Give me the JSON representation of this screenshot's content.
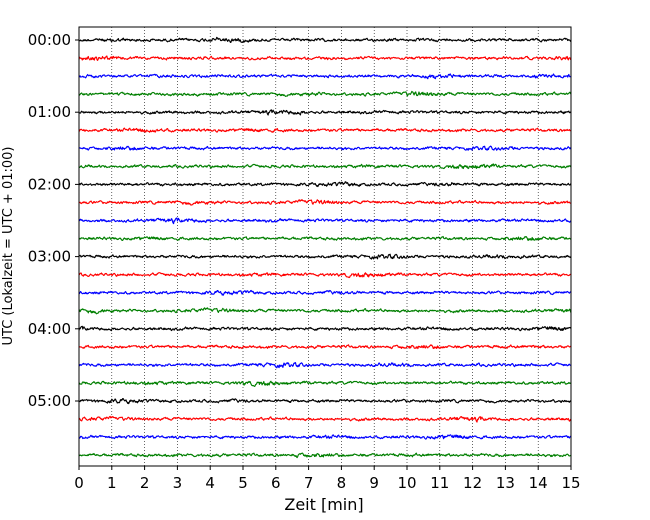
{
  "chart_data": {
    "type": "line",
    "title": "",
    "xlabel": "Zeit  [min]",
    "ylabel": "UTC (Lokalzeit = UTC + 01:00)",
    "xlim": [
      0,
      15
    ],
    "x_ticks": [
      0,
      1,
      2,
      3,
      4,
      5,
      6,
      7,
      8,
      9,
      10,
      11,
      12,
      13,
      14,
      15
    ],
    "x_tick_labels": [
      "0",
      "1",
      "2",
      "3",
      "4",
      "5",
      "6",
      "7",
      "8",
      "9",
      "10",
      "11",
      "12",
      "13",
      "14",
      "15"
    ],
    "y_tick_labels": [
      "00:00",
      "01:00",
      "02:00",
      "03:00",
      "04:00",
      "05:00"
    ],
    "y_ticks_trace_index": [
      0,
      4,
      8,
      12,
      16,
      20
    ],
    "trace_interval_minutes": 15,
    "grid": "vertical dotted",
    "legend": "none",
    "trace_colors": [
      "#000000",
      "#ff0000",
      "#0000ff",
      "#007f00"
    ],
    "traces": [
      {
        "start_utc": "00:00"
      },
      {
        "start_utc": "00:15"
      },
      {
        "start_utc": "00:30"
      },
      {
        "start_utc": "00:45"
      },
      {
        "start_utc": "01:00"
      },
      {
        "start_utc": "01:15"
      },
      {
        "start_utc": "01:30"
      },
      {
        "start_utc": "01:45"
      },
      {
        "start_utc": "02:00"
      },
      {
        "start_utc": "02:15"
      },
      {
        "start_utc": "02:30"
      },
      {
        "start_utc": "02:45"
      },
      {
        "start_utc": "03:00"
      },
      {
        "start_utc": "03:15"
      },
      {
        "start_utc": "03:30"
      },
      {
        "start_utc": "03:45"
      },
      {
        "start_utc": "04:00"
      },
      {
        "start_utc": "04:15"
      },
      {
        "start_utc": "04:30"
      },
      {
        "start_utc": "04:45"
      },
      {
        "start_utc": "05:00"
      },
      {
        "start_utc": "05:15"
      },
      {
        "start_utc": "05:30"
      },
      {
        "start_utc": "05:45"
      }
    ]
  }
}
